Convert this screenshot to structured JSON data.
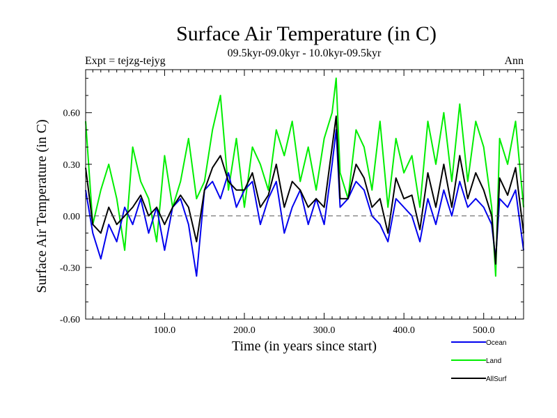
{
  "chart_data": {
    "type": "line",
    "title": "Surface Air Temperature (in C)",
    "subtitle": "09.5kyr-09.0kyr - 10.0kyr-09.5kyr",
    "left_label": "Expt = tejzg-tejyg",
    "right_label": "Ann",
    "xlabel": "Time (in years since start)",
    "ylabel": "Surface Air Temperature (in C)",
    "xlim": [
      1,
      550
    ],
    "ylim": [
      -0.6,
      0.85
    ],
    "x_ticks": [
      100,
      200,
      300,
      400,
      500
    ],
    "x_tick_labels": [
      "100.0",
      "200.0",
      "300.0",
      "400.0",
      "500.0"
    ],
    "y_ticks": [
      -0.6,
      -0.3,
      0.0,
      0.3,
      0.6
    ],
    "y_tick_labels": [
      "-0.60",
      "-0.30",
      "0.00",
      "0.30",
      "0.60"
    ],
    "reference_line": 0.0,
    "legend_position": "bottom-right",
    "series": [
      {
        "name": "Land",
        "color": "#00ee00",
        "x": [
          1,
          10,
          20,
          30,
          40,
          50,
          60,
          70,
          80,
          90,
          100,
          110,
          120,
          130,
          140,
          150,
          160,
          170,
          180,
          190,
          200,
          210,
          220,
          230,
          240,
          250,
          260,
          270,
          280,
          290,
          300,
          310,
          315,
          320,
          330,
          340,
          350,
          360,
          370,
          380,
          390,
          400,
          410,
          420,
          430,
          440,
          450,
          460,
          470,
          480,
          490,
          500,
          510,
          515,
          520,
          530,
          540,
          550
        ],
        "values": [
          0.55,
          -0.05,
          0.15,
          0.3,
          0.1,
          -0.2,
          0.4,
          0.2,
          0.1,
          -0.15,
          0.35,
          0.05,
          0.2,
          0.45,
          0.1,
          0.2,
          0.5,
          0.7,
          0.15,
          0.45,
          0.05,
          0.4,
          0.3,
          0.15,
          0.5,
          0.35,
          0.55,
          0.2,
          0.4,
          0.15,
          0.45,
          0.6,
          0.8,
          0.25,
          0.1,
          0.5,
          0.4,
          0.15,
          0.55,
          0.05,
          0.45,
          0.25,
          0.35,
          0.05,
          0.55,
          0.3,
          0.6,
          0.2,
          0.65,
          0.2,
          0.55,
          0.4,
          0.05,
          -0.35,
          0.45,
          0.3,
          0.55,
          0.05
        ]
      },
      {
        "name": "Ocean",
        "color": "#0000ee",
        "x": [
          1,
          10,
          20,
          30,
          40,
          50,
          60,
          70,
          80,
          90,
          100,
          110,
          120,
          130,
          140,
          150,
          160,
          170,
          180,
          190,
          200,
          210,
          220,
          230,
          240,
          250,
          260,
          270,
          280,
          290,
          300,
          310,
          315,
          320,
          330,
          340,
          350,
          360,
          370,
          380,
          390,
          400,
          410,
          420,
          430,
          440,
          450,
          460,
          470,
          480,
          490,
          500,
          510,
          515,
          520,
          530,
          540,
          550
        ],
        "values": [
          0.15,
          -0.1,
          -0.25,
          -0.05,
          -0.15,
          0.05,
          -0.05,
          0.1,
          -0.1,
          0.05,
          -0.2,
          0.05,
          0.1,
          -0.05,
          -0.35,
          0.15,
          0.2,
          0.1,
          0.25,
          0.05,
          0.15,
          0.2,
          -0.05,
          0.1,
          0.2,
          -0.1,
          0.05,
          0.15,
          -0.05,
          0.1,
          -0.05,
          0.3,
          0.5,
          0.05,
          0.1,
          0.2,
          0.15,
          0.0,
          -0.05,
          -0.15,
          0.1,
          0.05,
          0.0,
          -0.15,
          0.1,
          -0.05,
          0.15,
          0.0,
          0.2,
          0.05,
          0.1,
          0.05,
          -0.05,
          -0.25,
          0.1,
          0.05,
          0.15,
          -0.2
        ]
      },
      {
        "name": "AllSurf",
        "color": "#000000",
        "x": [
          1,
          10,
          20,
          30,
          40,
          50,
          60,
          70,
          80,
          90,
          100,
          110,
          120,
          130,
          140,
          150,
          160,
          170,
          180,
          190,
          200,
          210,
          220,
          230,
          240,
          250,
          260,
          270,
          280,
          290,
          300,
          310,
          315,
          320,
          330,
          340,
          350,
          360,
          370,
          380,
          390,
          400,
          410,
          420,
          430,
          440,
          450,
          460,
          470,
          480,
          490,
          500,
          510,
          515,
          520,
          530,
          540,
          550
        ],
        "values": [
          0.28,
          -0.05,
          -0.1,
          0.05,
          -0.05,
          0.0,
          0.05,
          0.12,
          0.0,
          0.05,
          -0.05,
          0.05,
          0.12,
          0.05,
          -0.15,
          0.15,
          0.28,
          0.35,
          0.2,
          0.15,
          0.15,
          0.25,
          0.05,
          0.12,
          0.3,
          0.05,
          0.2,
          0.15,
          0.05,
          0.1,
          0.05,
          0.4,
          0.58,
          0.1,
          0.1,
          0.3,
          0.22,
          0.05,
          0.1,
          -0.1,
          0.22,
          0.1,
          0.12,
          -0.08,
          0.25,
          0.05,
          0.3,
          0.05,
          0.35,
          0.1,
          0.25,
          0.15,
          0.0,
          -0.28,
          0.22,
          0.12,
          0.28,
          -0.1
        ]
      }
    ]
  }
}
